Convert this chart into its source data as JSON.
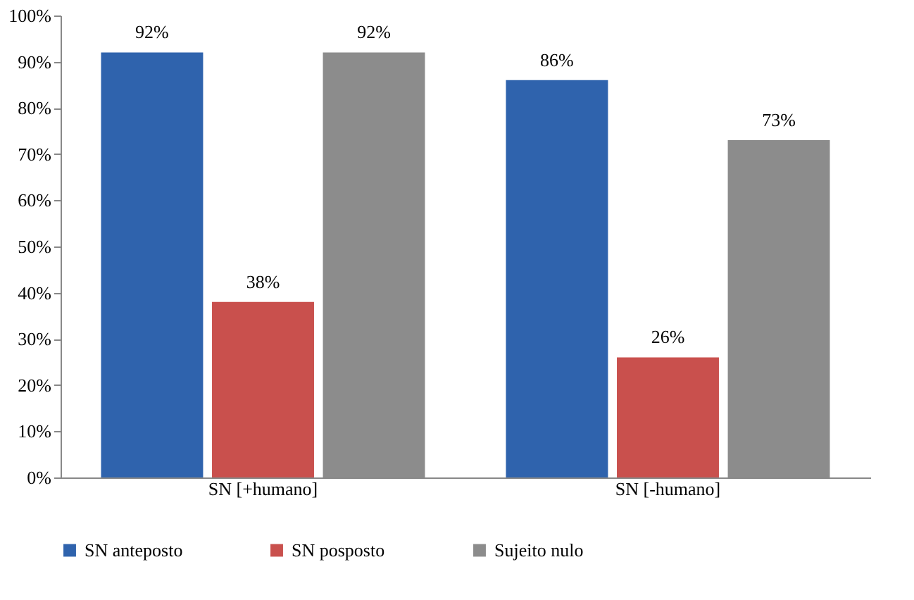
{
  "chart_data": {
    "type": "bar",
    "categories": [
      "SN [+humano]",
      "SN [-humano]"
    ],
    "series": [
      {
        "name": "SN anteposto",
        "color": "#2f63ad",
        "values": [
          92,
          86
        ],
        "value_labels": [
          "92%",
          "86%"
        ]
      },
      {
        "name": "SN posposto",
        "color": "#c9504d",
        "values": [
          38,
          26
        ],
        "value_labels": [
          "38%",
          "26%"
        ]
      },
      {
        "name": "Sujeito nulo",
        "color": "#8c8c8c",
        "values": [
          92,
          73
        ],
        "value_labels": [
          "92%",
          "73%"
        ]
      }
    ],
    "ylim": [
      0,
      100
    ],
    "yticks": [
      {
        "value": 0,
        "label": "0%"
      },
      {
        "value": 10,
        "label": "10%"
      },
      {
        "value": 20,
        "label": "20%"
      },
      {
        "value": 30,
        "label": "30%"
      },
      {
        "value": 40,
        "label": "40%"
      },
      {
        "value": 50,
        "label": "50%"
      },
      {
        "value": 60,
        "label": "60%"
      },
      {
        "value": 70,
        "label": "70%"
      },
      {
        "value": 80,
        "label": "80%"
      },
      {
        "value": 90,
        "label": "90%"
      },
      {
        "value": 100,
        "label": "100%"
      }
    ],
    "grid": false,
    "legend": "bottom"
  }
}
